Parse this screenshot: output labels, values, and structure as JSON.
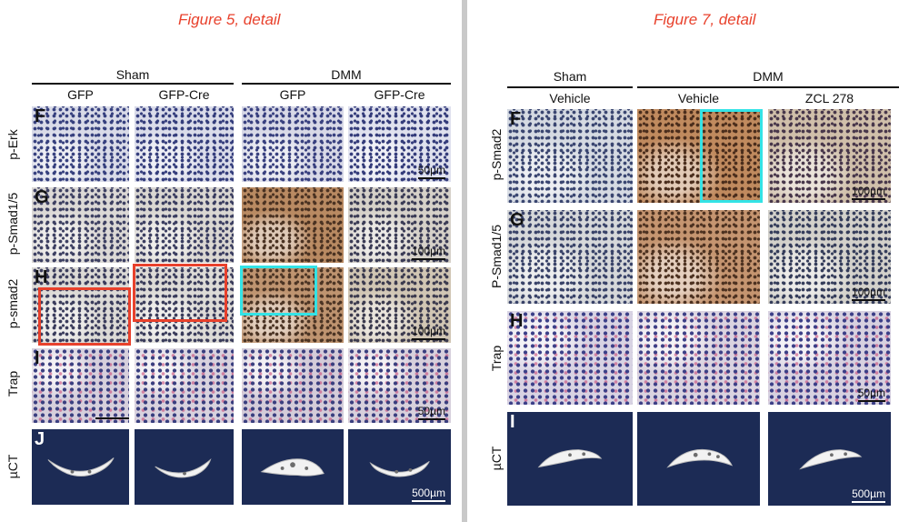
{
  "left": {
    "title": "Figure 5, detail",
    "groups": [
      "Sham",
      "DMM"
    ],
    "columns": [
      "GFP",
      "GFP-Cre",
      "GFP",
      "GFP-Cre"
    ],
    "rows": [
      {
        "letter": "F",
        "label": "p-Erk",
        "scale": "50µm"
      },
      {
        "letter": "G",
        "label": "p-Smad1/5",
        "scale": "100µm"
      },
      {
        "letter": "H",
        "label": "p-smad2",
        "scale": "100µm"
      },
      {
        "letter": "I",
        "label": "Trap",
        "scale": "50µm"
      },
      {
        "letter": "J",
        "label": "µCT",
        "scale": "500µm"
      }
    ]
  },
  "right": {
    "title": "Figure 7, detail",
    "groups": [
      "Sham",
      "DMM"
    ],
    "columns": [
      "Vehicle",
      "Vehicle",
      "ZCL 278"
    ],
    "rows": [
      {
        "letter": "F",
        "label": "p-Smad2",
        "scale": "100µm"
      },
      {
        "letter": "G",
        "label": "P-Smad1/5",
        "scale": "100µm"
      },
      {
        "letter": "H",
        "label": "Trap",
        "scale": "50µm"
      },
      {
        "letter": "I",
        "label": "µCT",
        "scale": "500µm"
      }
    ]
  },
  "colors": {
    "title": "#e8412c",
    "highlight_red": "#e8412c",
    "highlight_cyan": "#33e3e6",
    "ct_background": "#1c2b55"
  }
}
